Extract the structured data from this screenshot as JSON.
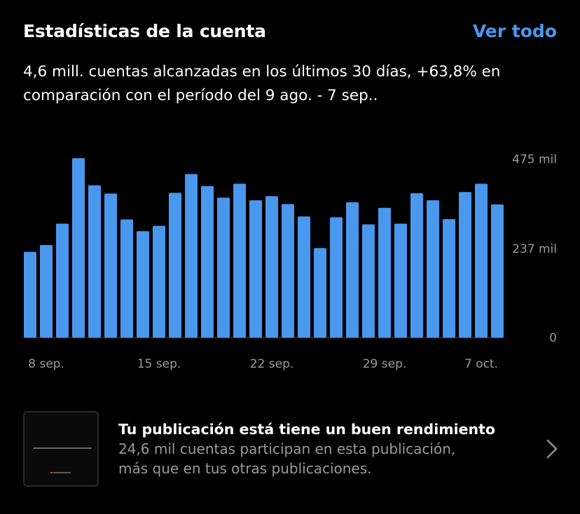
{
  "header": {
    "title": "Estadísticas de la cuenta",
    "see_all_label": "Ver todo"
  },
  "summary": {
    "line1": "4,6 mill. cuentas alcanzadas en los últimos 30 días, +63,8% en",
    "line2": "comparación con el período del 9 ago. - 7 sep.."
  },
  "chart_data": {
    "type": "bar",
    "values": [
      228,
      246,
      303,
      477,
      405,
      383,
      314,
      283,
      297,
      385,
      435,
      403,
      372,
      409,
      365,
      376,
      355,
      322,
      238,
      320,
      360,
      301,
      345,
      303,
      384,
      365,
      315,
      387,
      409,
      354
    ],
    "ylim": [
      0,
      475
    ],
    "y_ticks": [
      {
        "value": 475,
        "label": "475 mil"
      },
      {
        "value": 237,
        "label": "237 mil"
      },
      {
        "value": 0,
        "label": "0"
      }
    ],
    "x_ticks": [
      {
        "index": 1,
        "label": "8 sep."
      },
      {
        "index": 8,
        "label": "15 sep."
      },
      {
        "index": 15,
        "label": "22 sep."
      },
      {
        "index": 22,
        "label": "29 sep."
      },
      {
        "index": 28,
        "label": "7 oct."
      }
    ],
    "bar_color": "#4a97ee",
    "axis_color": "#444444",
    "label_color": "#9a9a9a"
  },
  "post_card": {
    "title": "Tu publicación está tiene un buen rendimiento",
    "desc_line1": "24,6 mil cuentas participan en esta publicación,",
    "desc_line2": "más que en tus otras publicaciones.",
    "chevron_icon": "chevron-right-icon"
  }
}
